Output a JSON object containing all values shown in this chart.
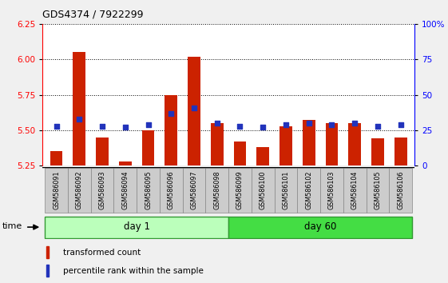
{
  "title": "GDS4374 / 7922299",
  "samples": [
    "GSM586091",
    "GSM586092",
    "GSM586093",
    "GSM586094",
    "GSM586095",
    "GSM586096",
    "GSM586097",
    "GSM586098",
    "GSM586099",
    "GSM586100",
    "GSM586101",
    "GSM586102",
    "GSM586103",
    "GSM586104",
    "GSM586105",
    "GSM586106"
  ],
  "bar_values": [
    5.35,
    6.05,
    5.45,
    5.28,
    5.5,
    5.75,
    6.02,
    5.55,
    5.42,
    5.38,
    5.53,
    5.57,
    5.55,
    5.55,
    5.44,
    5.45
  ],
  "dot_values": [
    28,
    33,
    28,
    27,
    29,
    37,
    41,
    30,
    28,
    27,
    29,
    30,
    29,
    30,
    28,
    29
  ],
  "ylim_left": [
    5.25,
    6.25
  ],
  "ylim_right": [
    0,
    100
  ],
  "yticks_left": [
    5.25,
    5.5,
    5.75,
    6.0,
    6.25
  ],
  "yticks_right": [
    0,
    25,
    50,
    75,
    100
  ],
  "ytick_labels_right": [
    "0",
    "25",
    "50",
    "75",
    "100%"
  ],
  "bar_color": "#cc2200",
  "dot_color": "#2233bb",
  "group1_label": "day 1",
  "group2_label": "day 60",
  "group1_indices": [
    0,
    1,
    2,
    3,
    4,
    5,
    6,
    7
  ],
  "group2_indices": [
    8,
    9,
    10,
    11,
    12,
    13,
    14,
    15
  ],
  "group1_color": "#bbffbb",
  "group2_color": "#44dd44",
  "time_label": "time",
  "legend_bar_label": "transformed count",
  "legend_dot_label": "percentile rank within the sample",
  "fig_bg": "#f0f0f0",
  "plot_bg": "#ffffff",
  "sample_box_color": "#cccccc",
  "sample_box_edge": "#888888"
}
